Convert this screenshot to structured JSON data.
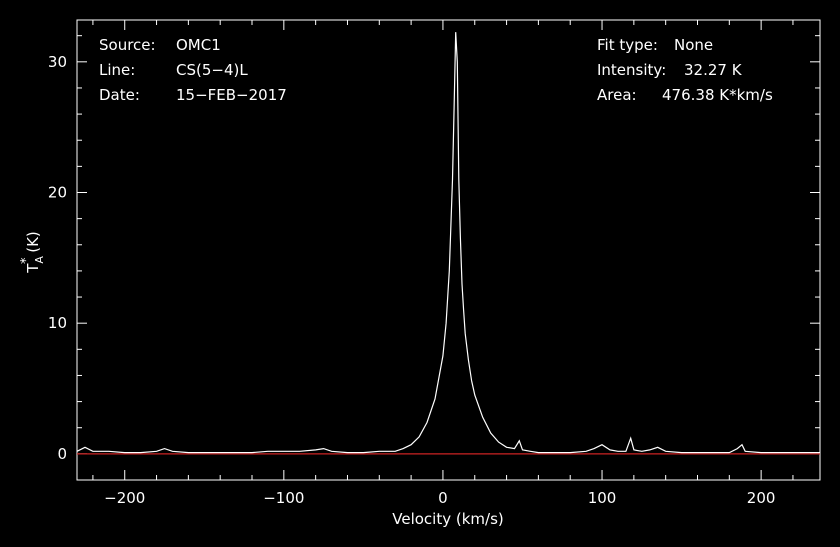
{
  "chart_data": {
    "type": "line",
    "xlabel": "Velocity (km/s)",
    "ylabel": {
      "base": "T",
      "sub": "A",
      "sup": "*",
      "unit": " (K)"
    },
    "xlim": [
      -230,
      237
    ],
    "ylim": [
      -2,
      33.2
    ],
    "xticks": [
      -200,
      -100,
      0,
      100,
      200
    ],
    "xtick_labels": [
      "−200",
      "−100",
      "0",
      "100",
      "200"
    ],
    "yticks": [
      0,
      10,
      20,
      30
    ],
    "ytick_labels": [
      "0",
      "10",
      "20",
      "30"
    ],
    "grid": false,
    "baseline": {
      "y": 0,
      "color": "#cc2222"
    },
    "line_color": "#ffffff",
    "series": [
      {
        "x": [
          -230,
          -225,
          -220,
          -210,
          -200,
          -190,
          -180,
          -175,
          -170,
          -160,
          -150,
          -140,
          -130,
          -120,
          -110,
          -100,
          -90,
          -80,
          -75,
          -70,
          -60,
          -50,
          -40,
          -30,
          -25,
          -20,
          -15,
          -10,
          -5,
          0,
          2,
          4,
          5,
          6,
          7,
          8,
          9,
          10,
          11,
          12,
          13,
          14,
          16,
          18,
          20,
          25,
          30,
          35,
          40,
          45,
          48,
          50,
          55,
          60,
          70,
          80,
          90,
          95,
          100,
          105,
          110,
          115,
          118,
          120,
          125,
          130,
          135,
          140,
          150,
          160,
          170,
          180,
          185,
          188,
          190,
          200,
          210,
          220,
          230,
          237
        ],
        "y": [
          0.2,
          0.5,
          0.2,
          0.2,
          0.1,
          0.1,
          0.2,
          0.4,
          0.2,
          0.1,
          0.1,
          0.1,
          0.1,
          0.1,
          0.2,
          0.2,
          0.2,
          0.3,
          0.4,
          0.2,
          0.1,
          0.1,
          0.2,
          0.2,
          0.4,
          0.7,
          1.3,
          2.4,
          4.2,
          7.5,
          10,
          14,
          17.5,
          21,
          26.5,
          32.27,
          30,
          21,
          16.5,
          13,
          11,
          9.2,
          7.2,
          5.6,
          4.5,
          2.8,
          1.6,
          0.9,
          0.5,
          0.4,
          1,
          0.3,
          0.2,
          0.1,
          0.1,
          0.1,
          0.2,
          0.4,
          0.7,
          0.3,
          0.2,
          0.2,
          1.2,
          0.3,
          0.2,
          0.3,
          0.5,
          0.2,
          0.1,
          0.1,
          0.1,
          0.1,
          0.4,
          0.7,
          0.2,
          0.1,
          0.1,
          0.1,
          0.1,
          0.1
        ]
      }
    ]
  },
  "info": {
    "source_label": "Source:",
    "source_value": "OMC1",
    "line_label": "Line:",
    "line_value": "CS(5−4)L",
    "date_label": "Date:",
    "date_value": "15−FEB−2017",
    "fit_label": "Fit type:",
    "fit_value": "None",
    "intensity_label": "Intensity:",
    "intensity_value": "32.27 K",
    "area_label": "Area:",
    "area_value": "476.38 K*km/s"
  }
}
